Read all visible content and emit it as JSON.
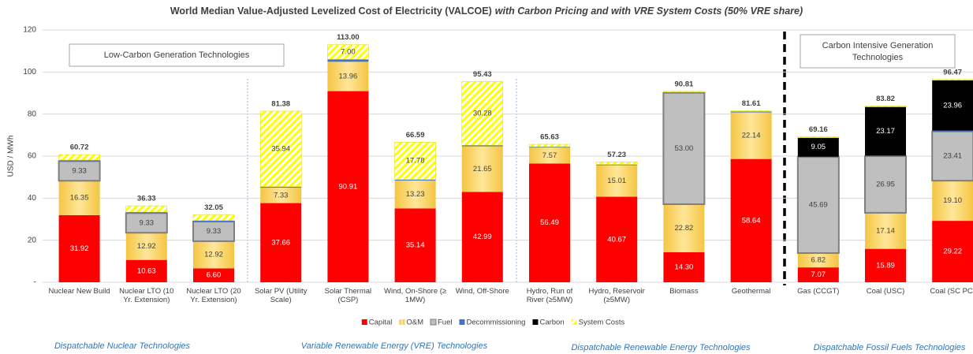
{
  "chart_data": {
    "type": "stacked_bar",
    "title": "World Median Value-Adjusted Levelized Cost of Electricity (VALCOE)",
    "subtitle": "with Carbon Pricing and with VRE System Costs (50% VRE share)",
    "ylabel": "USD / MWh",
    "categories": [
      "Nuclear New Build",
      "Nuclear LTO (10 Yr. Extension)",
      "Nuclear LTO (20 Yr. Extension)",
      "Solar PV (Utility Scale)",
      "Solar Thermal (CSP)",
      "Wind, On-Shore (≥ 1MW)",
      "Wind, Off-Shore",
      "Hydro, Run of River (≥5MW)",
      "Hydro, Reservoir (≥5MW)",
      "Biomass",
      "Geothermal",
      "Gas (CCGT)",
      "Coal (USC)",
      "Coal (SC PC)"
    ],
    "series": [
      {
        "name": "Capital",
        "color": "#ff0000",
        "values": [
          31.92,
          10.63,
          6.6,
          37.66,
          90.91,
          35.14,
          42.99,
          56.49,
          40.67,
          14.3,
          58.64,
          7.07,
          15.89,
          29.22
        ],
        "value_labels": [
          "31.92",
          "10.63",
          "6.60",
          "37.66",
          "90.91",
          "35.14",
          "42.99",
          "56.49",
          "40.67",
          "14.30",
          "58.64",
          "7.07",
          "15.89",
          "29.22"
        ]
      },
      {
        "name": "O&M",
        "color": "#ffd966",
        "values": [
          16.35,
          12.92,
          12.92,
          7.33,
          13.96,
          13.23,
          21.65,
          7.57,
          15.01,
          22.82,
          22.14,
          6.82,
          17.14,
          19.1
        ],
        "value_labels": [
          "16.35",
          "12.92",
          "12.92",
          "7.33",
          "13.96",
          "13.23",
          "21.65",
          "7.57",
          "15.01",
          "22.82",
          "22.14",
          "6.82",
          "17.14",
          "19.10"
        ]
      },
      {
        "name": "Fuel",
        "color": "#bfbfbf",
        "values": [
          9.33,
          9.33,
          9.33,
          null,
          null,
          null,
          null,
          null,
          null,
          53.0,
          null,
          45.69,
          26.95,
          23.41
        ],
        "value_labels": [
          "9.33",
          "9.33",
          "9.33",
          null,
          null,
          null,
          null,
          null,
          null,
          "53.00",
          null,
          "45.69",
          "26.95",
          "23.41"
        ]
      },
      {
        "name": "Decommissioning",
        "color": "#4472c4",
        "values": [
          0.5,
          0.5,
          0.5,
          0.45,
          1.13,
          0.44,
          0.51,
          0.37,
          0.35,
          0.29,
          0.43,
          0.13,
          0.27,
          0.38
        ]
      },
      {
        "name": "Carbon",
        "color": "#000000",
        "values": [
          null,
          null,
          null,
          null,
          null,
          null,
          null,
          null,
          null,
          null,
          null,
          9.05,
          23.17,
          23.96
        ],
        "value_labels": [
          null,
          null,
          null,
          null,
          null,
          null,
          null,
          null,
          null,
          null,
          null,
          "9.05",
          "23.17",
          "23.96"
        ]
      },
      {
        "name": "System Costs",
        "color": "#ffff00",
        "hatch": true,
        "values": [
          2.62,
          2.95,
          2.7,
          35.94,
          7.0,
          17.78,
          30.28,
          1.2,
          1.2,
          0.4,
          0.4,
          0.4,
          0.4,
          0.4
        ],
        "value_labels": [
          null,
          null,
          null,
          "35.94",
          "7.00",
          "17.78",
          "30.28",
          null,
          null,
          null,
          null,
          null,
          null,
          null
        ]
      }
    ],
    "totals": [
      60.72,
      36.33,
      32.05,
      81.38,
      113.0,
      66.59,
      95.43,
      65.63,
      57.23,
      90.81,
      81.61,
      69.16,
      83.82,
      96.47
    ],
    "total_labels": [
      "60.72",
      "36.33",
      "32.05",
      "81.38",
      "113.00",
      "66.59",
      "95.43",
      "65.63",
      "57.23",
      "90.81",
      "81.61",
      "69.16",
      "83.82",
      "96.47"
    ],
    "ylim": [
      0,
      120
    ],
    "yticks": [
      {
        "value": 0,
        "label": "-"
      },
      20,
      40,
      60,
      80,
      100,
      120
    ],
    "grid": true,
    "legend": "bottom",
    "annotations": {
      "low_carbon": "Low-Carbon Generation Technologies",
      "carbon_intensive": [
        "Carbon Intensive Generation",
        "Technologies"
      ]
    },
    "groups": [
      "Dispatchable Nuclear Technologies",
      "Variable Renewable Energy (VRE) Technologies",
      "Dispatchable Renewable Energy Technologies",
      "Dispatchable Fossil Fuels Technologies"
    ]
  }
}
